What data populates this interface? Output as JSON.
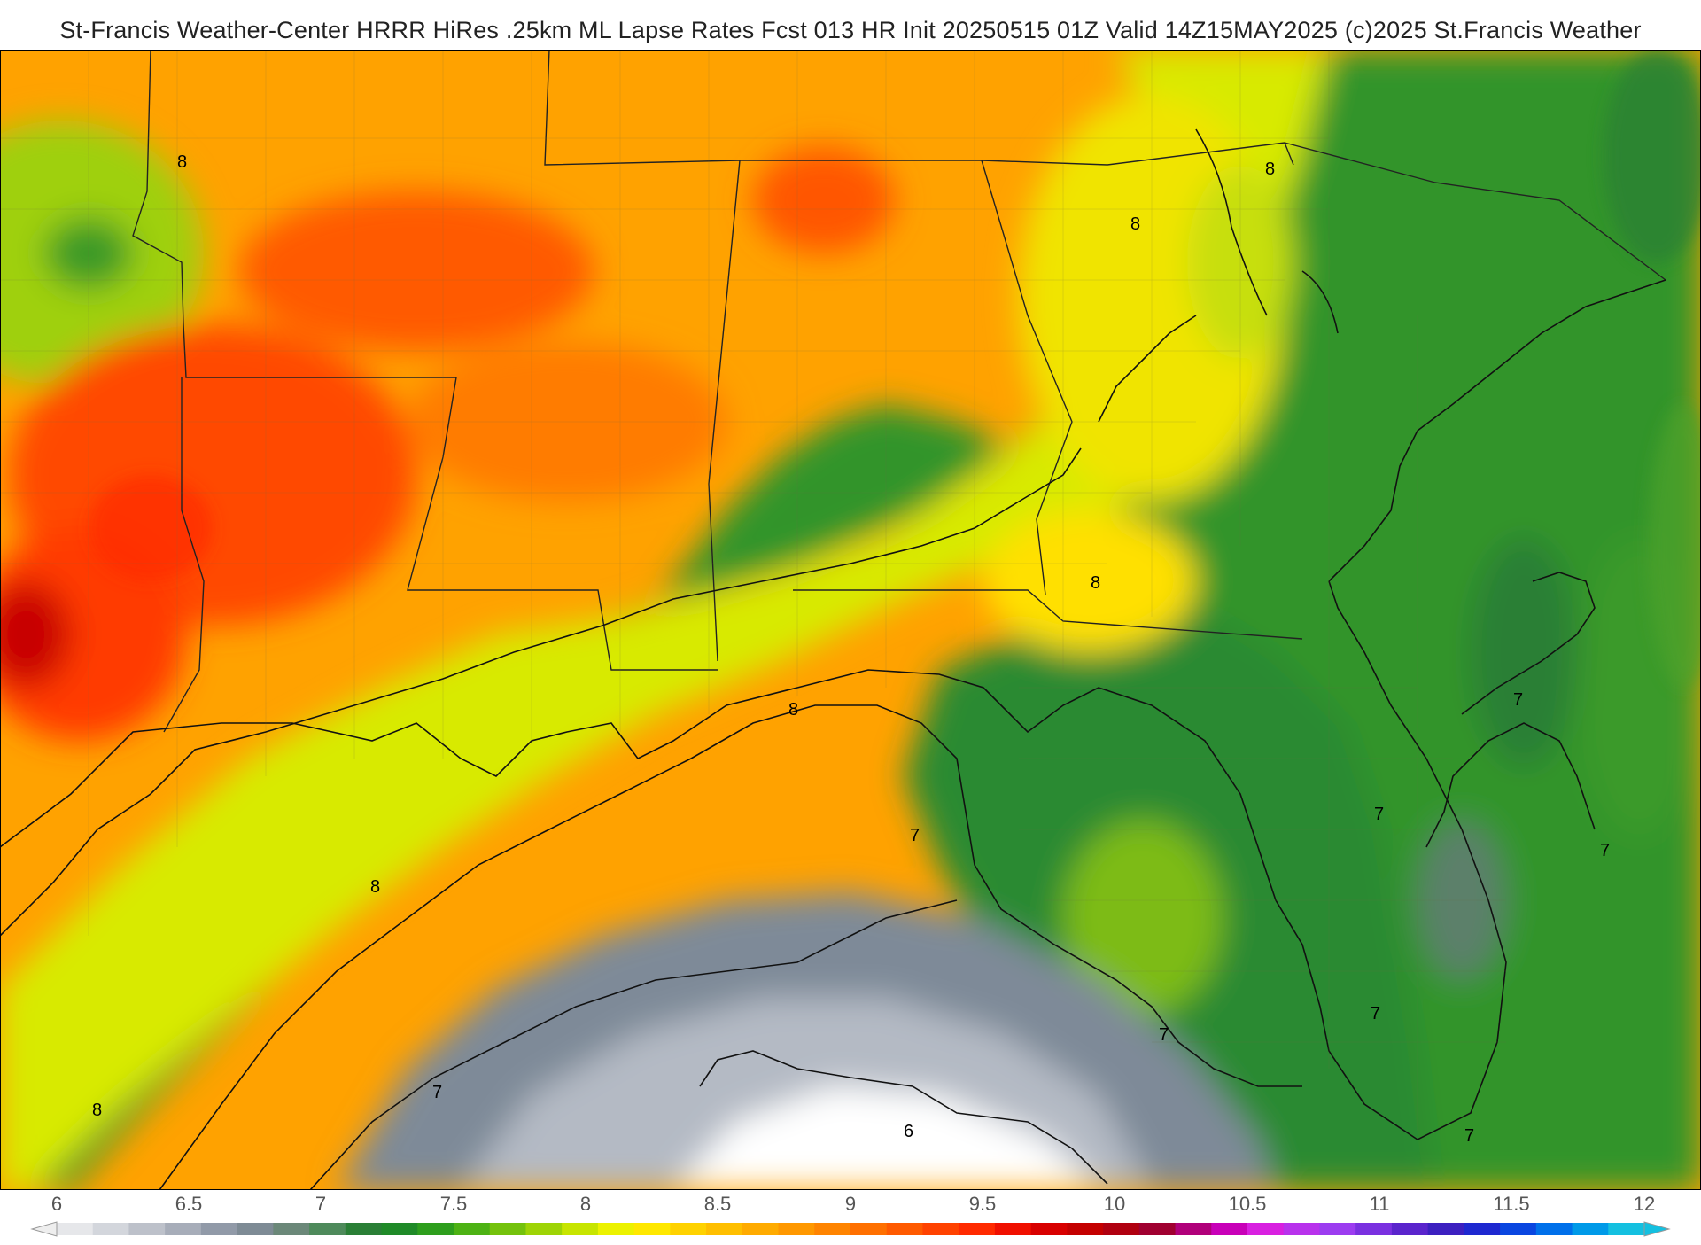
{
  "header": {
    "title": "St-Francis Weather-Center HRRR HiRes .25km ML Lapse Rates  Fcst 013 HR Init 20250515 01Z  Valid 14Z15MAY2025     (c)2025 St.Francis Weather"
  },
  "map": {
    "variable": "ML Lapse Rates",
    "contour_labels": [
      "8",
      "8",
      "8",
      "8",
      "8",
      "8",
      "8",
      "7",
      "7",
      "7",
      "7",
      "7",
      "7",
      "7",
      "7",
      "6"
    ]
  },
  "colorbar": {
    "ticks": [
      "6",
      "6.5",
      "7",
      "7.5",
      "8",
      "8.5",
      "9",
      "9.5",
      "10",
      "10.5",
      "11",
      "11.5",
      "12"
    ],
    "colors": [
      "#e6e7ea",
      "#d3d6dc",
      "#bdc1ca",
      "#a7adb9",
      "#919aa8",
      "#7e8b95",
      "#6b8879",
      "#4e8a5b",
      "#2a7f36",
      "#1f8a28",
      "#2e9e1d",
      "#4db214",
      "#74c20c",
      "#9ed405",
      "#c7e500",
      "#ecf200",
      "#ffe800",
      "#ffd200",
      "#ffbf00",
      "#ffab00",
      "#ff9800",
      "#ff8400",
      "#ff7000",
      "#ff5a00",
      "#ff4200",
      "#ff2a00",
      "#f01000",
      "#d80000",
      "#c40000",
      "#b00010",
      "#a00030",
      "#b0007a",
      "#c800b8",
      "#d820e0",
      "#b832ec",
      "#9c3cf0",
      "#7a30e0",
      "#5a24cc",
      "#3c20c0",
      "#1e28d0",
      "#0a46e0",
      "#0070ea",
      "#009ae8",
      "#14c0e0"
    ]
  }
}
